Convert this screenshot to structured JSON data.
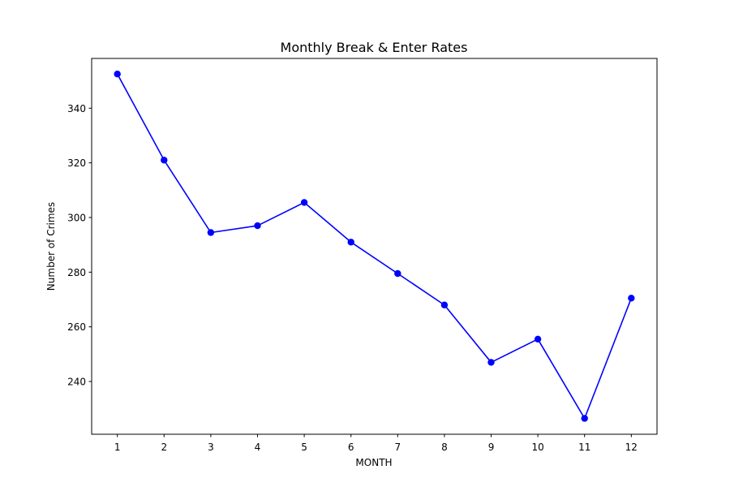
{
  "chart_data": {
    "type": "line",
    "title": "Monthly Break & Enter Rates",
    "xlabel": "MONTH",
    "ylabel": "Number of Crimes",
    "x": [
      1,
      2,
      3,
      4,
      5,
      6,
      7,
      8,
      9,
      10,
      11,
      12
    ],
    "x_tick_labels": [
      "1",
      "2",
      "3",
      "4",
      "5",
      "6",
      "7",
      "8",
      "9",
      "10",
      "11",
      "12"
    ],
    "y_ticks": [
      240,
      260,
      280,
      300,
      320,
      340
    ],
    "y_tick_labels": [
      "240",
      "260",
      "280",
      "300",
      "320",
      "340"
    ],
    "xlim": [
      0.45,
      12.55
    ],
    "ylim": [
      220.7,
      358.2
    ],
    "series": [
      {
        "values": [
          352.5,
          321,
          294.5,
          297,
          305.5,
          291,
          279.5,
          268,
          247,
          255.5,
          226.5,
          270.5
        ],
        "color": "#0000ff",
        "marker": "circle"
      }
    ],
    "grid": false,
    "legend": "none"
  }
}
